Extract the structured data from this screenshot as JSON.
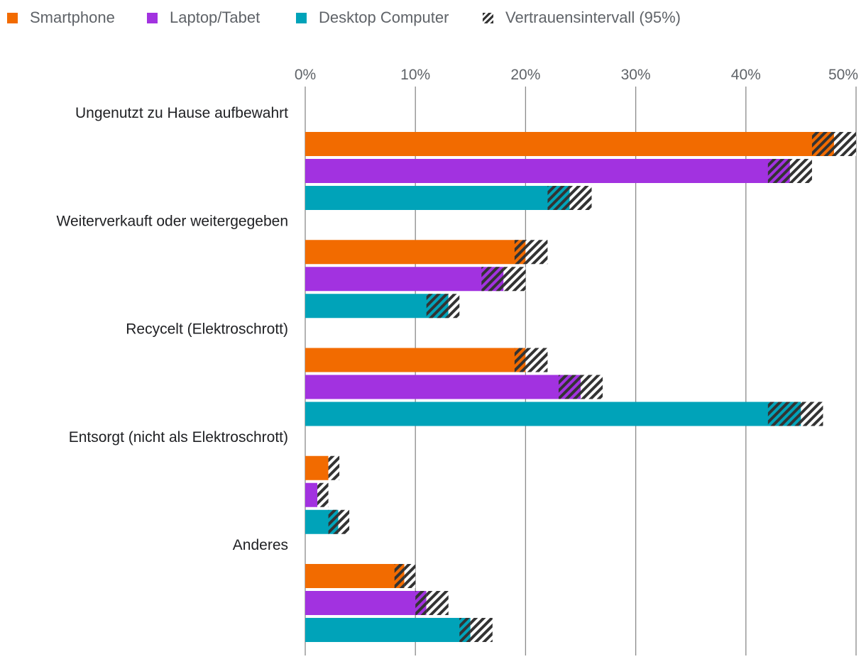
{
  "legend": [
    {
      "label": "Smartphone",
      "color": "#f26b00",
      "swatch": "solid"
    },
    {
      "label": "Laptop/Tabet",
      "color": "#a232e0",
      "swatch": "solid"
    },
    {
      "label": "Desktop Computer",
      "color": "#00a3b9",
      "swatch": "solid"
    },
    {
      "label": "Vertrauensintervall (95%)",
      "color": "#333333",
      "swatch": "hatched"
    }
  ],
  "chart_data": {
    "type": "bar",
    "orientation": "horizontal",
    "categories": [
      "Ungenutzt zu Hause aufbewahrt",
      "Weiterverkauft oder weitergegeben",
      "Recycelt (Elektroschrott)",
      "Entsorgt (nicht als Elektroschrott)",
      "Anderes"
    ],
    "series": [
      {
        "name": "Smartphone",
        "color": "#f26b00",
        "values": [
          48.0,
          20.0,
          20.0,
          2.1,
          9.0
        ],
        "ci_low": [
          46.0,
          19.0,
          19.0,
          2.1,
          8.1
        ],
        "ci_high": [
          50.0,
          22.0,
          22.0,
          3.1,
          10.0
        ]
      },
      {
        "name": "Laptop/Tabet",
        "color": "#a232e0",
        "values": [
          44.0,
          18.0,
          25.0,
          1.1,
          11.0
        ],
        "ci_low": [
          42.0,
          16.0,
          23.0,
          1.1,
          10.0
        ],
        "ci_high": [
          46.0,
          20.0,
          27.0,
          2.1,
          13.0
        ]
      },
      {
        "name": "Desktop Computer",
        "color": "#00a3b9",
        "values": [
          24.0,
          13.0,
          45.0,
          3.0,
          15.0
        ],
        "ci_low": [
          22.0,
          11.0,
          42.0,
          2.1,
          14.0
        ],
        "ci_high": [
          26.0,
          14.0,
          47.0,
          4.0,
          17.0
        ]
      }
    ],
    "ci_label": "Vertrauensintervall (95%)",
    "x_ticks": [
      "0%",
      "10%",
      "20%",
      "30%",
      "40%",
      "50%"
    ],
    "xlim": [
      0,
      50
    ],
    "grid": true,
    "legend_position": "top-left"
  }
}
